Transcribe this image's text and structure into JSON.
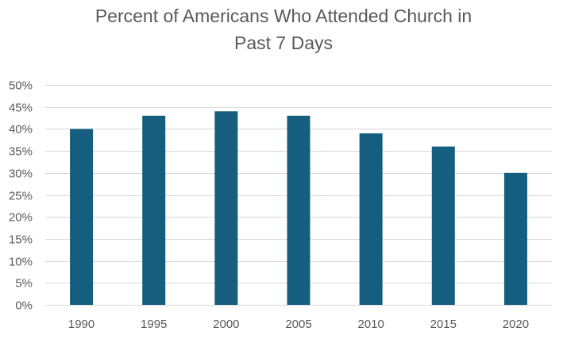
{
  "chart_data": {
    "type": "bar",
    "title_lines": [
      "Percent of Americans Who Attended Church in",
      "Past 7 Days"
    ],
    "categories": [
      "1990",
      "1995",
      "2000",
      "2005",
      "2010",
      "2015",
      "2020"
    ],
    "values": [
      40,
      43,
      44,
      43,
      39,
      36,
      30
    ],
    "y_ticks": [
      "0%",
      "5%",
      "10%",
      "15%",
      "20%",
      "25%",
      "30%",
      "35%",
      "40%",
      "45%",
      "50%"
    ],
    "ylim": [
      0,
      50
    ],
    "y_unit": "%",
    "grid": true,
    "legend": "none",
    "bar_color": "#165E80",
    "grid_color": "#D9D9D9"
  }
}
